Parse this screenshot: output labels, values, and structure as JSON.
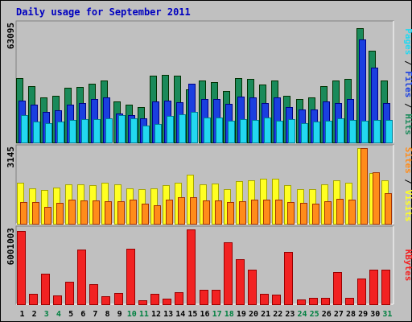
{
  "chart_data": {
    "type": "bar",
    "title": "Daily usage for September 2011",
    "categories": [
      "1",
      "2",
      "3",
      "4",
      "5",
      "6",
      "7",
      "8",
      "9",
      "10",
      "11",
      "12",
      "13",
      "14",
      "15",
      "16",
      "17",
      "18",
      "19",
      "20",
      "21",
      "22",
      "23",
      "24",
      "25",
      "26",
      "27",
      "28",
      "29",
      "30",
      "31"
    ],
    "weekend_days": [
      "3",
      "4",
      "10",
      "11",
      "17",
      "18",
      "24",
      "25",
      "31"
    ],
    "panels": [
      {
        "id": "top",
        "max_label": "63095",
        "ylim": [
          0,
          63095
        ],
        "axis_label_parts": [
          "Pages",
          "Files",
          "Hits"
        ],
        "series": [
          {
            "name": "Hits",
            "color": "#1a8a5a",
            "values": [
              34500,
              30000,
              24000,
              25000,
              29000,
              29500,
              31500,
              33000,
              22000,
              20000,
              19000,
              35500,
              36000,
              35500,
              28500,
              33000,
              32000,
              27500,
              34500,
              34000,
              31000,
              33000,
              25000,
              23000,
              24000,
              30000,
              33000,
              34000,
              61000,
              49000,
              33000
            ]
          },
          {
            "name": "Files",
            "color": "#1a3fe0",
            "values": [
              22500,
              20000,
              16500,
              17000,
              20000,
              21000,
              23000,
              24000,
              15500,
              14500,
              13000,
              22000,
              22500,
              21500,
              31500,
              23000,
              23000,
              20500,
              24500,
              24000,
              21000,
              24000,
              19000,
              17500,
              17500,
              22000,
              21000,
              23000,
              55000,
              40000,
              21000
            ]
          },
          {
            "name": "Pages",
            "color": "#22d8f0",
            "values": [
              14500,
              11000,
              10500,
              11000,
              12000,
              12500,
              12500,
              13000,
              14500,
              13000,
              9000,
              10000,
              14000,
              15000,
              16500,
              13500,
              13500,
              11500,
              12500,
              12000,
              13500,
              11500,
              12500,
              10500,
              11000,
              11500,
              13000,
              12000,
              11500,
              12000,
              12000
            ]
          }
        ]
      },
      {
        "id": "middle",
        "max_label": "3145",
        "ylim": [
          0,
          3145
        ],
        "axis_label_parts": [
          "Sites",
          "Visits"
        ],
        "series": [
          {
            "name": "Visits",
            "color": "#ffff22",
            "values": [
              1690,
              1480,
              1410,
              1520,
              1640,
              1650,
              1590,
              1710,
              1650,
              1480,
              1440,
              1460,
              1600,
              1700,
              2050,
              1640,
              1660,
              1450,
              1770,
              1800,
              1880,
              1880,
              1600,
              1450,
              1440,
              1630,
              1800,
              1700,
              3145,
              2100,
              1800
            ]
          },
          {
            "name": "Sites",
            "color": "#ff8c1a",
            "values": [
              900,
              920,
              700,
              880,
              1000,
              980,
              960,
              930,
              950,
              1000,
              820,
              780,
              1000,
              1100,
              1100,
              970,
              960,
              900,
              940,
              1020,
              1010,
              1020,
              910,
              860,
              850,
              950,
              1030,
              1020,
              3145,
              2140,
              1280
            ]
          }
        ]
      },
      {
        "id": "bottom",
        "max_label": "6001003",
        "ylim": [
          0,
          6001003
        ],
        "axis_label_parts": [
          "KBytes"
        ],
        "series": [
          {
            "name": "KBytes",
            "color": "#f22222",
            "values": [
              5900000,
              830000,
              2440000,
              700000,
              1810000,
              4390000,
              1590000,
              660000,
              890000,
              4460000,
              340000,
              850000,
              420000,
              980000,
              6001003,
              1160000,
              1160000,
              4990000,
              3640000,
              2780000,
              840000,
              780000,
              4200000,
              400000,
              500000,
              500000,
              2610000,
              530000,
              2090000,
              2800000,
              2800000
            ]
          }
        ]
      }
    ],
    "colors": {
      "background": "#c0c0c0",
      "plot_background": "#c0c0c0",
      "title_color": "#0000c0",
      "axis_label_color": "#000000",
      "weekday_label": "#000000",
      "weekend_label": "#008040"
    }
  }
}
